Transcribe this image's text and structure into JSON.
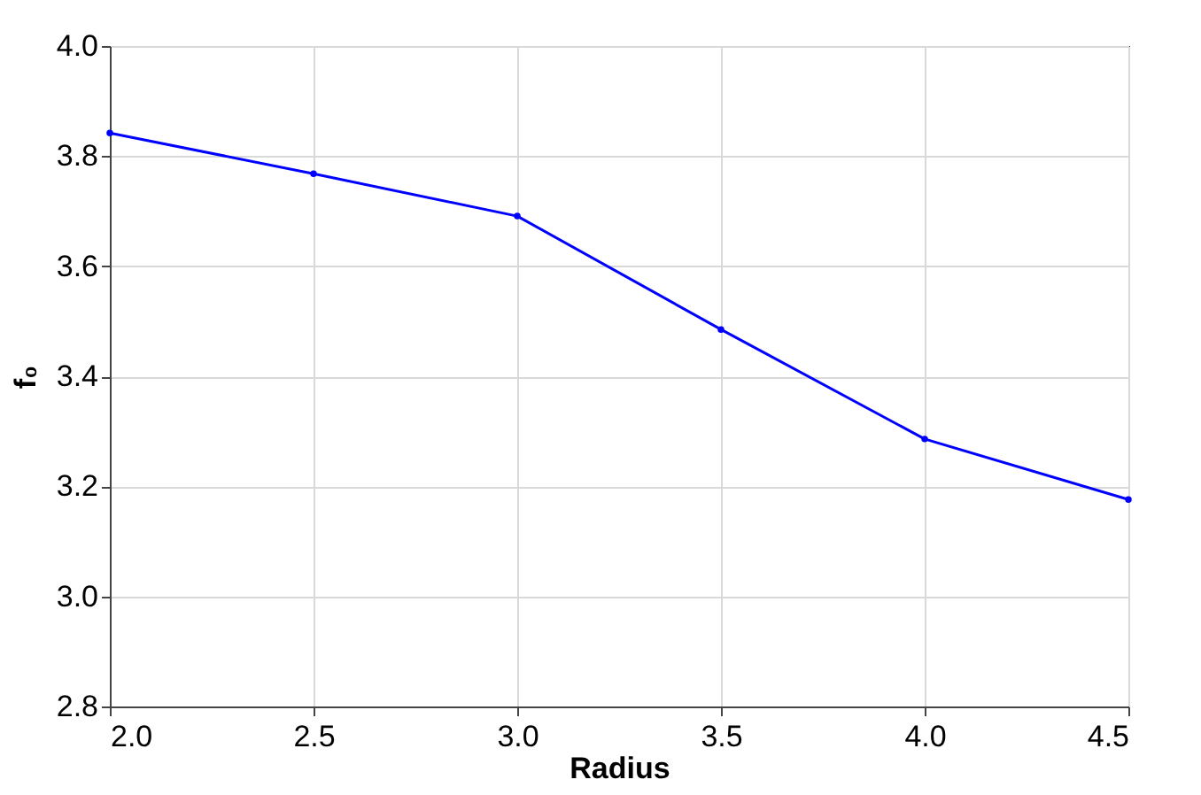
{
  "chart_data": {
    "type": "line",
    "xlabel": "Radius",
    "ylabel": "f₀",
    "x": [
      2.0,
      2.5,
      3.0,
      3.5,
      4.0,
      4.5
    ],
    "series": [
      {
        "color": "#0000ff",
        "values": [
          3.842,
          3.768,
          3.691,
          3.485,
          3.286,
          3.176
        ]
      }
    ],
    "xlim": [
      2.0,
      4.5
    ],
    "xticks": [
      {
        "value": 2,
        "label": "2.0"
      },
      2.5,
      {
        "value": 3,
        "label": "3.0"
      },
      3.5,
      {
        "value": 4,
        "label": "4.0"
      },
      4.5
    ],
    "ylim": [
      2.8,
      4.0
    ],
    "yticks": [
      2.8,
      {
        "value": 3,
        "label": "3.0"
      },
      3.2,
      3.4,
      3.6,
      3.8,
      {
        "value": 4,
        "label": "4.0"
      }
    ],
    "grid": true,
    "marker": "circle",
    "line_style": "solid"
  }
}
